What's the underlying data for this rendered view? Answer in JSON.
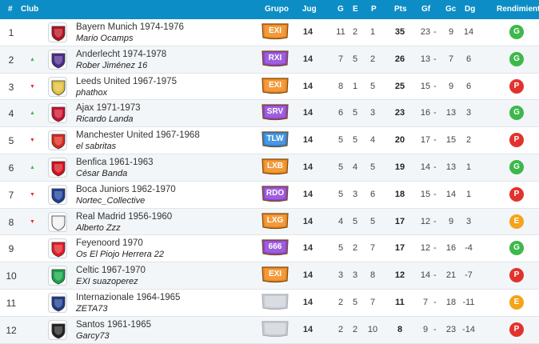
{
  "header": {
    "hash": "#",
    "club": "Club",
    "grupo": "Grupo",
    "jug": "Jug",
    "g": "G",
    "e": "E",
    "p": "P",
    "pts": "Pts",
    "gf": "Gf",
    "gc": "Gc",
    "dg": "Dg",
    "rendimiento": "Rendimiento"
  },
  "colors": {
    "header_bg": "#0d8dc5",
    "trend_up": "#3db84a",
    "trend_down": "#e2322e",
    "badge_orange": "#f08a1c",
    "badge_purple": "#8e44d8",
    "badge_blue": "#2a86e0",
    "badge_gray": "#c7ccd1",
    "result_G": "#3db84a",
    "result_P": "#e2322e",
    "result_E": "#f5a31a"
  },
  "rows": [
    {
      "pos": "1",
      "trend": "",
      "club": "Bayern Munich 1974-1976",
      "manager": "Mario Ocamps",
      "grupo": "EXI",
      "grupo_color": "orange",
      "jug": "14",
      "g": "11",
      "e": "2",
      "p": "1",
      "pts": "35",
      "gf": "23",
      "gc": "9",
      "dg": "14",
      "rend": "G",
      "crest_color": "#b3121f",
      "crest_icon": "bayern-crest-icon"
    },
    {
      "pos": "2",
      "trend": "up",
      "club": "Anderlecht 1974-1978",
      "manager": "Rober Jiménez 16",
      "grupo": "RXI",
      "grupo_color": "purple",
      "jug": "14",
      "g": "7",
      "e": "5",
      "p": "2",
      "pts": "26",
      "gf": "13",
      "gc": "7",
      "dg": "6",
      "rend": "G",
      "crest_color": "#4b2a8a",
      "crest_icon": "anderlecht-crest-icon"
    },
    {
      "pos": "3",
      "trend": "down",
      "club": "Leeds United 1967-1975",
      "manager": "phathox",
      "grupo": "EXI",
      "grupo_color": "orange",
      "jug": "14",
      "g": "8",
      "e": "1",
      "p": "5",
      "pts": "25",
      "gf": "15",
      "gc": "9",
      "dg": "6",
      "rend": "P",
      "crest_color": "#e3c13b",
      "crest_icon": "leeds-crest-icon"
    },
    {
      "pos": "4",
      "trend": "up",
      "club": "Ajax 1971-1973",
      "manager": "Ricardo Landa",
      "grupo": "SRV",
      "grupo_color": "purple",
      "jug": "14",
      "g": "6",
      "e": "5",
      "p": "3",
      "pts": "23",
      "gf": "16",
      "gc": "13",
      "dg": "3",
      "rend": "G",
      "crest_color": "#c8102e",
      "crest_icon": "ajax-crest-icon"
    },
    {
      "pos": "5",
      "trend": "down",
      "club": "Manchester United 1967-1968",
      "manager": "el sabritas",
      "grupo": "TLW",
      "grupo_color": "blue",
      "jug": "14",
      "g": "5",
      "e": "5",
      "p": "4",
      "pts": "20",
      "gf": "17",
      "gc": "15",
      "dg": "2",
      "rend": "P",
      "crest_color": "#da291c",
      "crest_icon": "manutd-crest-icon"
    },
    {
      "pos": "6",
      "trend": "up",
      "club": "Benfica 1961-1963",
      "manager": "César Banda",
      "grupo": "LXB",
      "grupo_color": "orange",
      "jug": "14",
      "g": "5",
      "e": "4",
      "p": "5",
      "pts": "19",
      "gf": "14",
      "gc": "13",
      "dg": "1",
      "rend": "G",
      "crest_color": "#d6101e",
      "crest_icon": "benfica-crest-icon"
    },
    {
      "pos": "7",
      "trend": "down",
      "club": "Boca Juniors 1962-1970",
      "manager": "Nortec_Collective",
      "grupo": "RDO",
      "grupo_color": "purple",
      "jug": "14",
      "g": "5",
      "e": "3",
      "p": "6",
      "pts": "18",
      "gf": "15",
      "gc": "14",
      "dg": "1",
      "rend": "P",
      "crest_color": "#1c3f94",
      "crest_icon": "boca-crest-icon"
    },
    {
      "pos": "8",
      "trend": "down",
      "club": "Real Madrid 1956-1960",
      "manager": "Alberto Zzz",
      "grupo": "LXG",
      "grupo_color": "orange",
      "jug": "14",
      "g": "4",
      "e": "5",
      "p": "5",
      "pts": "17",
      "gf": "12",
      "gc": "9",
      "dg": "3",
      "rend": "E",
      "crest_color": "#f2f2f2",
      "crest_icon": "realmadrid-crest-icon"
    },
    {
      "pos": "9",
      "trend": "",
      "club": "Feyenoord 1970",
      "manager": "Os El Piojo Herrera 22",
      "grupo": "666",
      "grupo_color": "purple",
      "jug": "14",
      "g": "5",
      "e": "2",
      "p": "7",
      "pts": "17",
      "gf": "12",
      "gc": "16",
      "dg": "-4",
      "rend": "G",
      "crest_color": "#e31b23",
      "crest_icon": "feyenoord-crest-icon"
    },
    {
      "pos": "10",
      "trend": "",
      "club": "Celtic 1967-1970",
      "manager": "EXI suazoperez",
      "grupo": "EXI",
      "grupo_color": "orange",
      "jug": "14",
      "g": "3",
      "e": "3",
      "p": "8",
      "pts": "12",
      "gf": "14",
      "gc": "21",
      "dg": "-7",
      "rend": "P",
      "crest_color": "#16a34a",
      "crest_icon": "celtic-crest-icon"
    },
    {
      "pos": "11",
      "trend": "",
      "club": "Internazionale 1964-1965",
      "manager": "ZETA73",
      "grupo": "",
      "grupo_color": "gray",
      "jug": "14",
      "g": "2",
      "e": "5",
      "p": "7",
      "pts": "11",
      "gf": "7",
      "gc": "18",
      "dg": "-11",
      "rend": "E",
      "crest_color": "#1e3a8a",
      "crest_icon": "inter-crest-icon"
    },
    {
      "pos": "12",
      "trend": "",
      "club": "Santos 1961-1965",
      "manager": "Garcy73",
      "grupo": "",
      "grupo_color": "gray",
      "jug": "14",
      "g": "2",
      "e": "2",
      "p": "10",
      "pts": "8",
      "gf": "9",
      "gc": "23",
      "dg": "-14",
      "rend": "P",
      "crest_color": "#222222",
      "crest_icon": "santos-crest-icon"
    }
  ]
}
